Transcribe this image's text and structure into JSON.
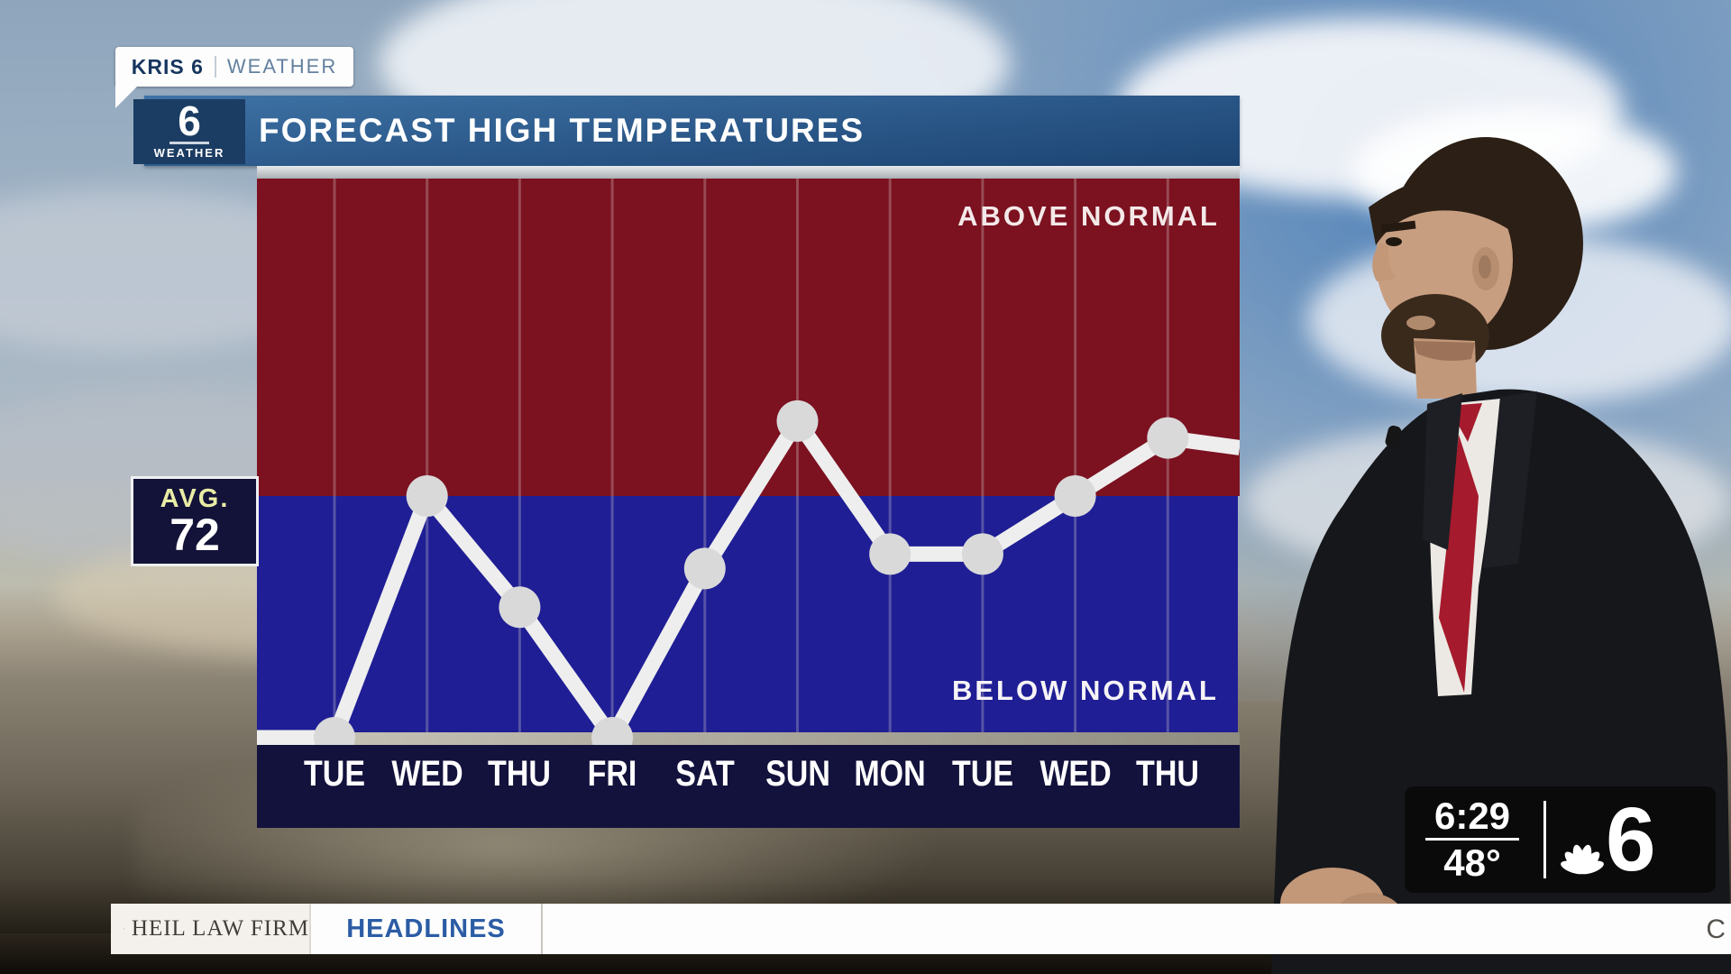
{
  "brand_tab": {
    "station": "KRIS 6",
    "section": "WEATHER"
  },
  "badge": {
    "channel": "6",
    "label": "WEATHER"
  },
  "header": {
    "title": "FORECAST HIGH TEMPERATURES"
  },
  "avg_marker": {
    "label": "AVG.",
    "value": "72"
  },
  "chart_data": {
    "type": "line",
    "title": "FORECAST HIGH TEMPERATURES",
    "categories": [
      "TUE",
      "WED",
      "THU",
      "FRI",
      "SAT",
      "SUN",
      "MON",
      "TUE",
      "WED",
      "THU"
    ],
    "average": {
      "label": "AVG.",
      "value": 72
    },
    "region_labels": {
      "above": "ABOVE NORMAL",
      "below": "BELOW NORMAL"
    },
    "values_vs_normal": [
      -1.0,
      0.0,
      -0.46,
      -1.0,
      -0.3,
      0.31,
      -0.24,
      -0.24,
      0.0,
      0.24
    ],
    "lead_in_value": -1.0,
    "lead_out_value": 0.2,
    "ylim_vs_normal": [
      -1.0,
      1.31
    ],
    "grid": true,
    "legend_position": "none",
    "colors": {
      "above_region": "#7c1120",
      "below_region": "#1f1e95",
      "axis_strip": "#13123c",
      "line": "#eeeeee",
      "marker": "#d9d9d9",
      "gridline": "rgba(216,210,205,0.30)"
    }
  },
  "time_panel": {
    "time": "6:29",
    "temperature": "48°",
    "channel": "6"
  },
  "ticker": {
    "sponsor": "HEIL LAW FIRM",
    "headlines": "HEADLINES",
    "scroll_text": "C"
  }
}
